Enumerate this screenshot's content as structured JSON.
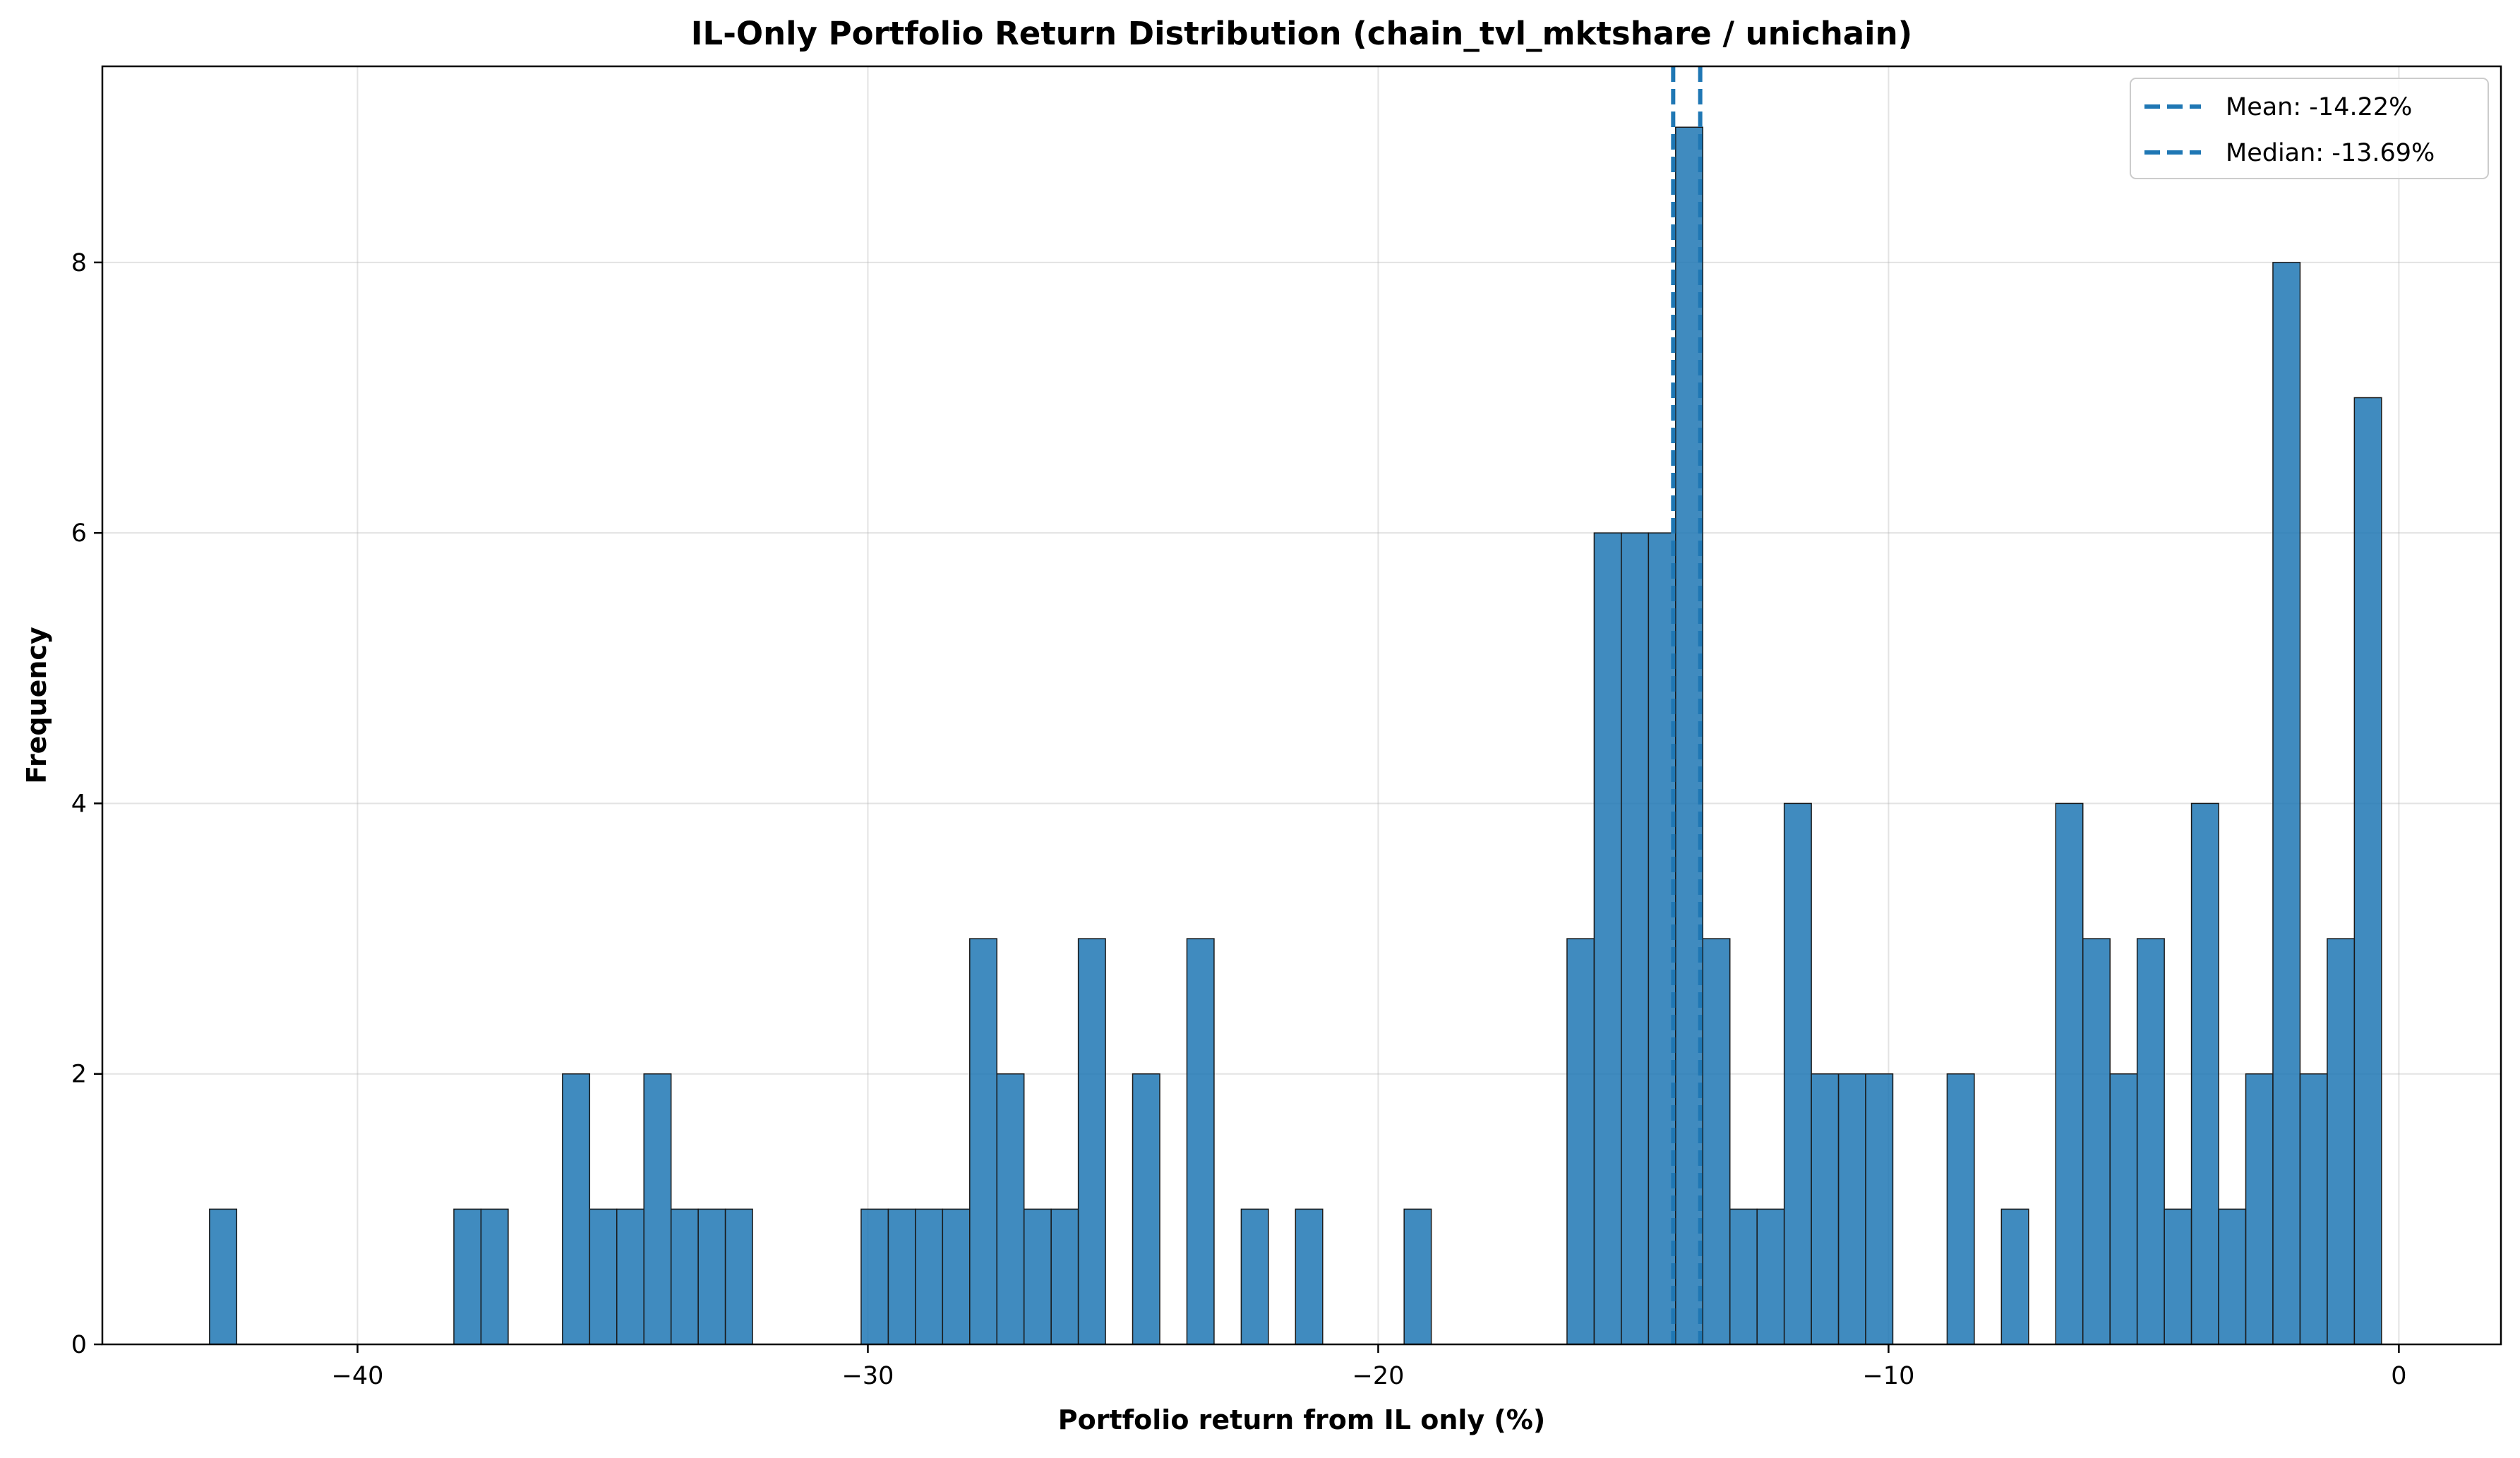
{
  "chart_data": {
    "type": "bar",
    "title": "IL-Only Portfolio Return Distribution (chain_tvl_mktshare / unichain)",
    "xlabel": "Portfolio return from IL only (%)",
    "ylabel": "Frequency",
    "xlim": [
      -45,
      2
    ],
    "ylim": [
      0,
      9.45
    ],
    "x_ticks": [
      -40,
      -30,
      -20,
      -10,
      0
    ],
    "x_tick_labels": [
      "−40",
      "−30",
      "−20",
      "−10",
      "0"
    ],
    "y_ticks": [
      0,
      2,
      4,
      6,
      8
    ],
    "y_tick_labels": [
      "0",
      "2",
      "4",
      "6",
      "8"
    ],
    "grid": true,
    "bar_color": "#1f77b4",
    "bin_start": -42.9,
    "bin_width": 0.532,
    "counts": [
      1,
      0,
      0,
      0,
      0,
      0,
      0,
      0,
      0,
      1,
      1,
      0,
      0,
      2,
      1,
      1,
      2,
      1,
      1,
      1,
      0,
      0,
      0,
      0,
      1,
      1,
      1,
      1,
      3,
      2,
      1,
      1,
      3,
      0,
      2,
      0,
      3,
      0,
      1,
      0,
      1,
      0,
      0,
      0,
      1,
      0,
      0,
      0,
      0,
      0,
      3,
      6,
      6,
      6,
      9,
      3,
      1,
      1,
      4,
      2,
      2,
      2,
      0,
      0,
      2,
      0,
      1,
      0,
      4,
      3,
      2,
      3,
      1,
      4,
      1,
      2,
      8,
      2,
      3,
      7
    ],
    "reference_lines": [
      {
        "name": "Mean: -14.22%",
        "x": -14.22,
        "color": "#1f77b4",
        "style": "dashed"
      },
      {
        "name": "Median: -13.69%",
        "x": -13.69,
        "color": "#1f77b4",
        "style": "dashed"
      }
    ],
    "legend_placement": "top-right"
  }
}
